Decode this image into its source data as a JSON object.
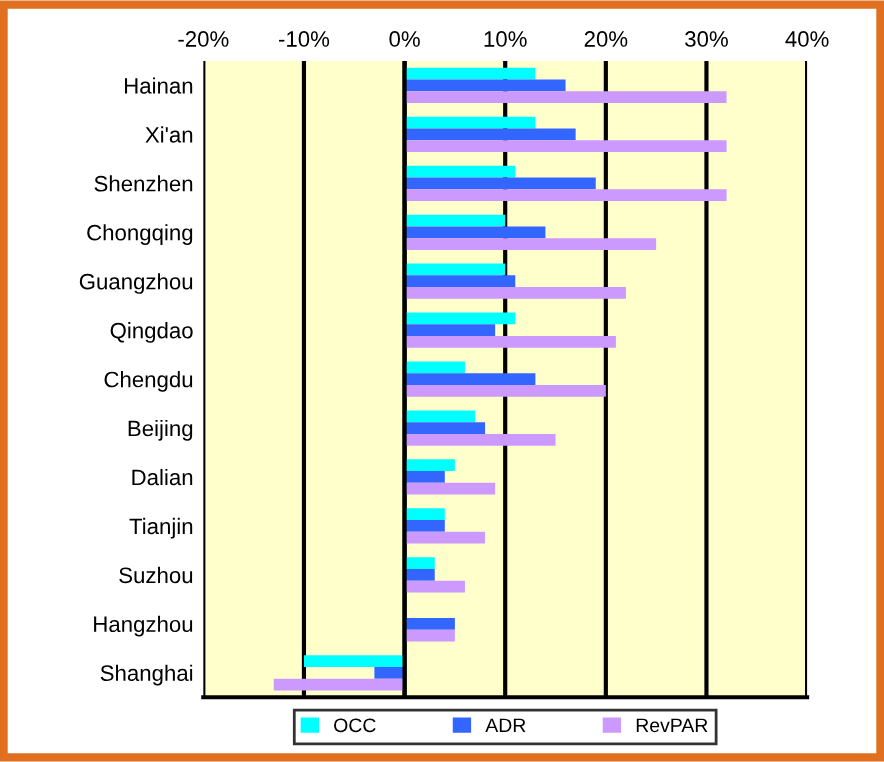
{
  "chart_data": {
    "type": "bar",
    "orientation": "horizontal",
    "categories": [
      "Hainan",
      "Xi'an",
      "Shenzhen",
      "Chongqing",
      "Guangzhou",
      "Qingdao",
      "Chengdu",
      "Beijing",
      "Dalian",
      "Tianjin",
      "Suzhou",
      "Hangzhou",
      "Shanghai"
    ],
    "series": [
      {
        "name": "OCC",
        "color": "#00ffff",
        "values": [
          13,
          13,
          11,
          10,
          10,
          11,
          6,
          7,
          5,
          4,
          3,
          0,
          -10
        ]
      },
      {
        "name": "ADR",
        "color": "#3366ff",
        "values": [
          16,
          17,
          19,
          14,
          11,
          9,
          13,
          8,
          4,
          4,
          3,
          5,
          -3
        ]
      },
      {
        "name": "RevPAR",
        "color": "#cc99ff",
        "values": [
          32,
          32,
          32,
          25,
          22,
          21,
          20,
          15,
          9,
          8,
          6,
          5,
          -13
        ]
      }
    ],
    "xlim": [
      -20,
      40
    ],
    "xticks": [
      {
        "value": -20,
        "label": "-20%"
      },
      {
        "value": -10,
        "label": "-10%"
      },
      {
        "value": 0,
        "label": "0%"
      },
      {
        "value": 10,
        "label": "10%"
      },
      {
        "value": 20,
        "label": "20%"
      },
      {
        "value": 30,
        "label": "30%"
      },
      {
        "value": 40,
        "label": "40%"
      }
    ],
    "grid": "x",
    "legend": "bottom"
  }
}
